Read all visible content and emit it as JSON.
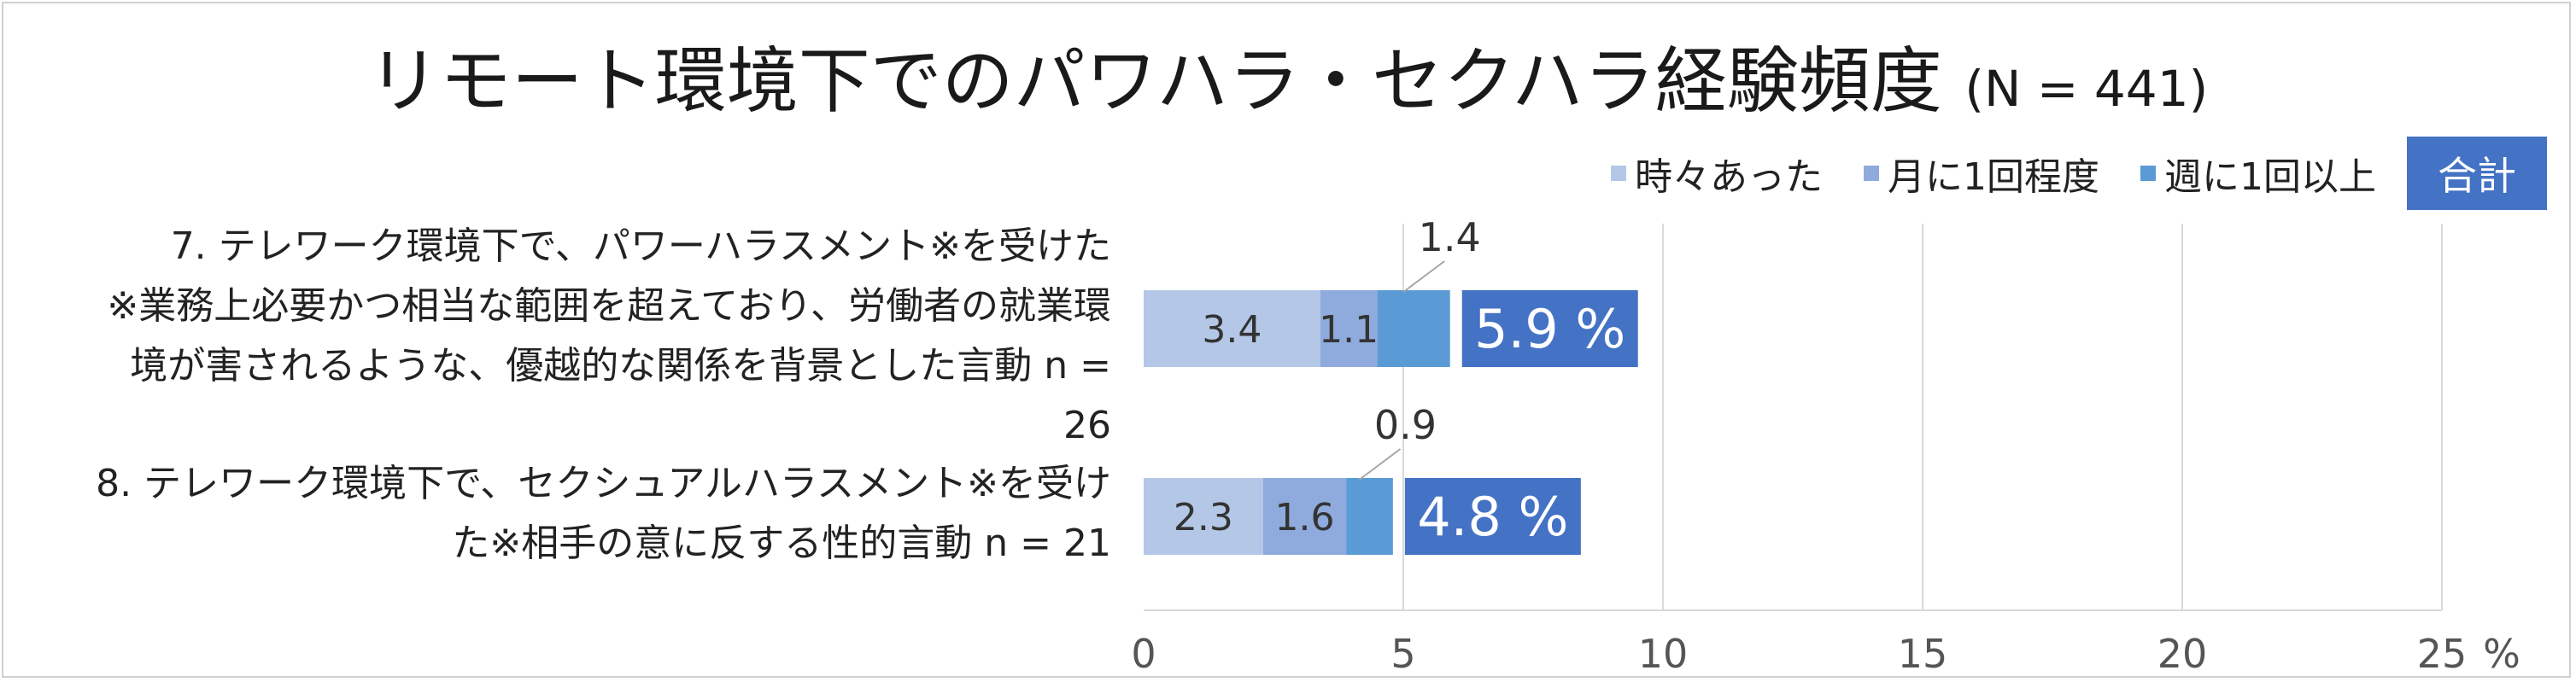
{
  "chart_data": {
    "type": "bar",
    "orientation": "horizontal",
    "stacked": true,
    "title": "リモート環境下でのパワハラ・セクハラ経験頻度",
    "title_n": "(N = 441)",
    "categories": [
      "7. テレワーク環境下で、パワーハラスメント※を受けた\n※業務上必要かつ相当な範囲を超えており、労働者の就業環\n境が害されるような、優越的な関係を背景とした言動 n =\n26",
      "8. テレワーク環境下で、セクシュアルハラスメント※を受け\nた※相手の意に反する性的言動 n = 21"
    ],
    "series": [
      {
        "name": "時々あった",
        "values": [
          3.4,
          2.3
        ],
        "color": "#b4c7e7"
      },
      {
        "name": "月に1回程度",
        "values": [
          1.1,
          1.6
        ],
        "color": "#8faadc"
      },
      {
        "name": "週に1回以上",
        "values": [
          1.4,
          0.9
        ],
        "color": "#5b9bd5"
      }
    ],
    "totals": {
      "name": "合計",
      "labels": [
        "5.9 %",
        "4.8 %"
      ],
      "color": "#4472c4"
    },
    "xlim": [
      0,
      25
    ],
    "xticks": [
      0,
      5,
      10,
      15,
      20,
      25
    ],
    "xunit": "%",
    "grid": true,
    "legend_position": "top-right"
  }
}
